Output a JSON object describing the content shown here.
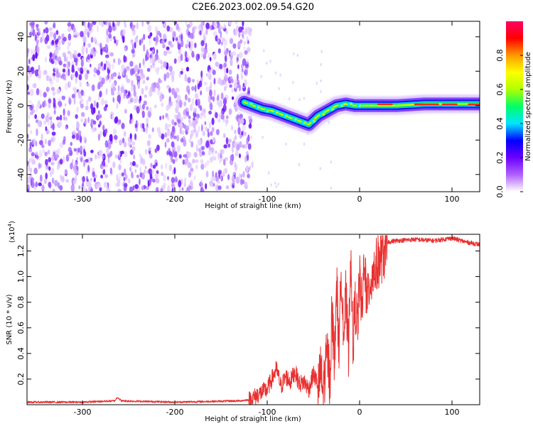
{
  "figure": {
    "title": "C2E6.2023.002.09.54.G20"
  },
  "chart_data": [
    {
      "type": "heatmap",
      "xlabel": "Height of straight line (km)",
      "ylabel": "Frequency (Hz)",
      "xlim": [
        -360,
        130
      ],
      "ylim": [
        -50,
        49
      ],
      "x_ticks": [
        -300,
        -200,
        -100,
        0,
        100
      ],
      "x_tick_labels": [
        "-300",
        "-200",
        "-100",
        "0",
        "100"
      ],
      "y_ticks": [
        -40,
        -20,
        0,
        20,
        40
      ],
      "y_tick_labels": [
        "-40",
        "-20",
        "0",
        "20",
        "40"
      ],
      "noise_region_x": [
        -360,
        -118
      ],
      "signal_track": [
        {
          "x": -125,
          "y": 2
        },
        {
          "x": -115,
          "y": 0
        },
        {
          "x": -105,
          "y": -2
        },
        {
          "x": -95,
          "y": -3
        },
        {
          "x": -85,
          "y": -5
        },
        {
          "x": -75,
          "y": -7
        },
        {
          "x": -65,
          "y": -9
        },
        {
          "x": -55,
          "y": -11
        },
        {
          "x": -45,
          "y": -6
        },
        {
          "x": -35,
          "y": -3
        },
        {
          "x": -25,
          "y": 0
        },
        {
          "x": -15,
          "y": 1
        },
        {
          "x": -5,
          "y": 0
        },
        {
          "x": 10,
          "y": 0
        },
        {
          "x": 40,
          "y": 0
        },
        {
          "x": 70,
          "y": 1
        },
        {
          "x": 100,
          "y": 1
        },
        {
          "x": 130,
          "y": 1
        }
      ],
      "grid": false,
      "colorbar": {
        "label": "Normalized spectral amplitude",
        "range": [
          0,
          1
        ],
        "ticks": [
          0.0,
          0.2,
          0.4,
          0.6,
          0.8
        ],
        "tick_labels": [
          "0.0",
          "0.2",
          "0.4",
          "0.6",
          "0.8"
        ],
        "colors": [
          "#ffffff",
          "#b060ff",
          "#6a00ff",
          "#0000ff",
          "#00e5ff",
          "#00ff66",
          "#b0ff00",
          "#ffff00",
          "#ff9900",
          "#ff0000",
          "#ff0066"
        ]
      }
    },
    {
      "type": "line",
      "xlabel": "Height of straight line (km)",
      "ylabel": "SNR (10 * v/v)",
      "y_multiplier": "(x10",
      "y_multiplier_exp": "4",
      "y_multiplier_close": ")",
      "xlim": [
        -360,
        130
      ],
      "ylim": [
        0,
        1.33
      ],
      "x_ticks": [
        -300,
        -200,
        -100,
        0,
        100
      ],
      "x_tick_labels": [
        "-300",
        "-200",
        "-100",
        "0",
        "100"
      ],
      "y_ticks": [
        0.2,
        0.4,
        0.6,
        0.8,
        1.0,
        1.2
      ],
      "y_tick_labels": [
        "0.2",
        "0.4",
        "0.6",
        "0.8",
        "1.0",
        "1.2"
      ],
      "color": "#e83030",
      "grid": false,
      "series": [
        {
          "x": [
            -360,
            -300,
            -265,
            -262,
            -258,
            -200,
            -130,
            -118,
            -110,
            -100,
            -95,
            -90,
            -85,
            -80,
            -75,
            -70,
            -65,
            -60,
            -55,
            -50,
            -45,
            -42,
            -40,
            -35,
            -32,
            -30,
            -27,
            -25,
            -22,
            -20,
            -17,
            -15,
            -12,
            -10,
            -7,
            -5,
            -2,
            0,
            3,
            5,
            8,
            10,
            15,
            20,
            25,
            30,
            40,
            60,
            80,
            100,
            115,
            130
          ],
          "values": [
            0.02,
            0.02,
            0.03,
            0.06,
            0.03,
            0.02,
            0.03,
            0.04,
            0.08,
            0.12,
            0.2,
            0.28,
            0.14,
            0.22,
            0.18,
            0.26,
            0.16,
            0.18,
            0.12,
            0.24,
            0.16,
            0.35,
            0.15,
            0.48,
            0.25,
            0.8,
            0.4,
            1.05,
            0.45,
            1.18,
            0.6,
            0.9,
            0.5,
            1.22,
            0.55,
            0.85,
            0.7,
            1.05,
            0.75,
            1.3,
            0.8,
            1.0,
            1.1,
            1.18,
            1.24,
            1.27,
            1.28,
            1.29,
            1.28,
            1.3,
            1.27,
            1.25
          ]
        }
      ]
    }
  ]
}
